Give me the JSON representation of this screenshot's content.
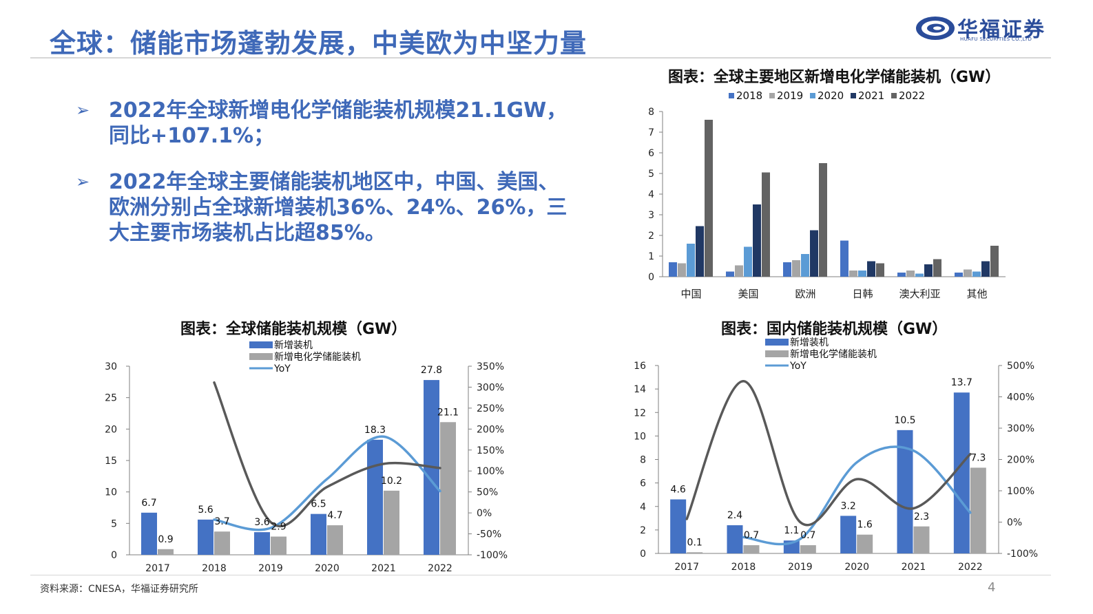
{
  "page": {
    "title": "全球：储能市场蓬勃发展，中美欧为中坚力量",
    "logo_name": "华福证券",
    "logo_en": "HUAFU SECURITIES CO.,LTD",
    "bullet_marker": "➢",
    "bullets": [
      "2022年全球新增电化学储能装机规模21.1GW，同比+107.1%；",
      "2022年全球主要储能装机地区中，中国、美国、欧洲分别占全球新增装机36%、24%、26%，三大主要市场装机占比超85%。"
    ],
    "source": "资料来源：CNESA，华福证券研究所",
    "page_number": "4"
  },
  "chart_data": [
    {
      "type": "bar",
      "title": "图表：全球主要地区新增电化学储能装机（GW）",
      "categories": [
        "中国",
        "美国",
        "欧洲",
        "日韩",
        "澳大利亚",
        "其他"
      ],
      "series": [
        {
          "name": "2018",
          "color": "#4472c4",
          "values": [
            0.7,
            0.25,
            0.7,
            1.75,
            0.2,
            0.2
          ]
        },
        {
          "name": "2019",
          "color": "#a5a5a5",
          "values": [
            0.65,
            0.55,
            0.8,
            0.3,
            0.3,
            0.35
          ]
        },
        {
          "name": "2020",
          "color": "#5b9bd5",
          "values": [
            1.6,
            1.45,
            1.1,
            0.3,
            0.15,
            0.25
          ]
        },
        {
          "name": "2021",
          "color": "#203864",
          "values": [
            2.45,
            3.5,
            2.25,
            0.75,
            0.6,
            0.75
          ]
        },
        {
          "name": "2022",
          "color": "#636363",
          "values": [
            7.6,
            5.05,
            5.5,
            0.65,
            0.85,
            1.5
          ]
        }
      ],
      "ylim": [
        0,
        8
      ],
      "yticks": [
        "0",
        "1",
        "2",
        "3",
        "4",
        "5",
        "6",
        "7",
        "8"
      ],
      "legend": "top"
    },
    {
      "type": "bar",
      "title": "图表：全球储能装机规模（GW）",
      "categories": [
        "2017",
        "2018",
        "2019",
        "2020",
        "2021",
        "2022"
      ],
      "series": [
        {
          "name": "新增装机",
          "color": "#4472c4",
          "axis": "left",
          "values": [
            6.7,
            5.6,
            3.6,
            6.5,
            18.3,
            27.8
          ],
          "labels": [
            "6.7",
            "5.6",
            "3.6",
            "6.5",
            "18.3",
            "27.8"
          ]
        },
        {
          "name": "新增电化学储能装机",
          "color": "#a5a5a5",
          "axis": "left",
          "values": [
            0.9,
            3.7,
            2.9,
            4.7,
            10.2,
            21.1
          ],
          "labels": [
            "0.9",
            "3.7",
            "2.9",
            "4.7",
            "10.2",
            "21.1"
          ]
        },
        {
          "name": "YoY",
          "type": "line",
          "color": "#5b9bd5",
          "axis": "right",
          "values": [
            null,
            -16,
            -36,
            81,
            182,
            52
          ]
        },
        {
          "name": "",
          "type": "line",
          "color": "#595959",
          "axis": "right",
          "values": [
            null,
            311,
            -22,
            62,
            117,
            107
          ]
        }
      ],
      "ylim_left": [
        0,
        30
      ],
      "yticks_left": [
        "0",
        "5",
        "10",
        "15",
        "20",
        "25",
        "30"
      ],
      "ylim_right": [
        -100,
        350
      ],
      "yticks_right": [
        "-100%",
        "-50%",
        "0%",
        "50%",
        "100%",
        "150%",
        "200%",
        "250%",
        "300%",
        "350%"
      ],
      "legend": "top-left"
    },
    {
      "type": "bar",
      "title": "图表：国内储能装机规模（GW）",
      "categories": [
        "2017",
        "2018",
        "2019",
        "2020",
        "2021",
        "2022"
      ],
      "series": [
        {
          "name": "新增装机",
          "color": "#4472c4",
          "axis": "left",
          "values": [
            4.6,
            2.4,
            1.1,
            3.2,
            10.5,
            13.7
          ],
          "labels": [
            "4.6",
            "2.4",
            "1.1",
            "3.2",
            "10.5",
            "13.7"
          ]
        },
        {
          "name": "新增电化学储能装机",
          "color": "#a5a5a5",
          "axis": "left",
          "values": [
            0.1,
            0.7,
            0.7,
            1.6,
            2.3,
            7.3
          ],
          "labels": [
            "0.1",
            "0.7",
            "0.7",
            "1.6",
            "2.3",
            "7.3"
          ]
        },
        {
          "name": "YoY",
          "type": "line",
          "color": "#5b9bd5",
          "axis": "right",
          "values": [
            null,
            -48,
            -54,
            191,
            228,
            30
          ]
        },
        {
          "name": "",
          "type": "line",
          "color": "#595959",
          "axis": "right",
          "values": [
            10,
            450,
            0,
            137,
            44,
            217
          ]
        }
      ],
      "ylim_left": [
        0,
        16
      ],
      "yticks_left": [
        "0",
        "2",
        "4",
        "6",
        "8",
        "10",
        "12",
        "14",
        "16"
      ],
      "ylim_right": [
        -100,
        500
      ],
      "yticks_right": [
        "-100%",
        "0%",
        "100%",
        "200%",
        "300%",
        "400%",
        "500%"
      ],
      "legend": "top-left"
    }
  ]
}
